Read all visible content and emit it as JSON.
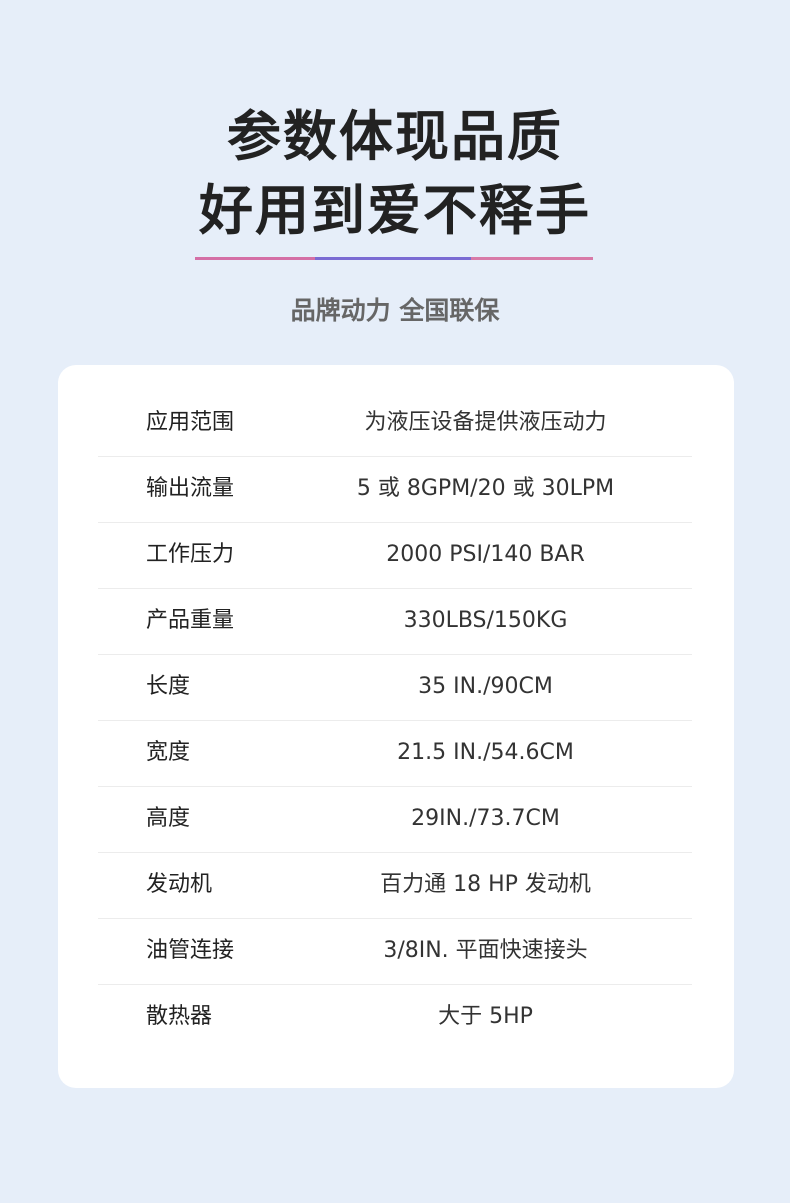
{
  "header": {
    "title_line1": "参数体现品质",
    "title_line2": "好用到爱不释手",
    "subtitle": "品牌动力 全国联保",
    "divider_colors": [
      "#d46fa6",
      "#7a6bd3",
      "#d87aa8"
    ]
  },
  "specs": [
    {
      "label": "应用范围",
      "value": "为液压设备提供液压动力"
    },
    {
      "label": "输出流量",
      "value": "5 或 8GPM/20 或 30LPM"
    },
    {
      "label": "工作压力",
      "value": "2000 PSI/140 BAR"
    },
    {
      "label": "产品重量",
      "value": "330LBS/150KG"
    },
    {
      "label": "长度",
      "value": "35 IN./90CM"
    },
    {
      "label": "宽度",
      "value": "21.5 IN./54.6CM"
    },
    {
      "label": "高度",
      "value": "29IN./73.7CM"
    },
    {
      "label": "发动机",
      "value": "百力通 18 HP 发动机"
    },
    {
      "label": "油管连接",
      "value": "3/8IN. 平面快速接头"
    },
    {
      "label": "散热器",
      "value": "大于 5HP"
    }
  ]
}
